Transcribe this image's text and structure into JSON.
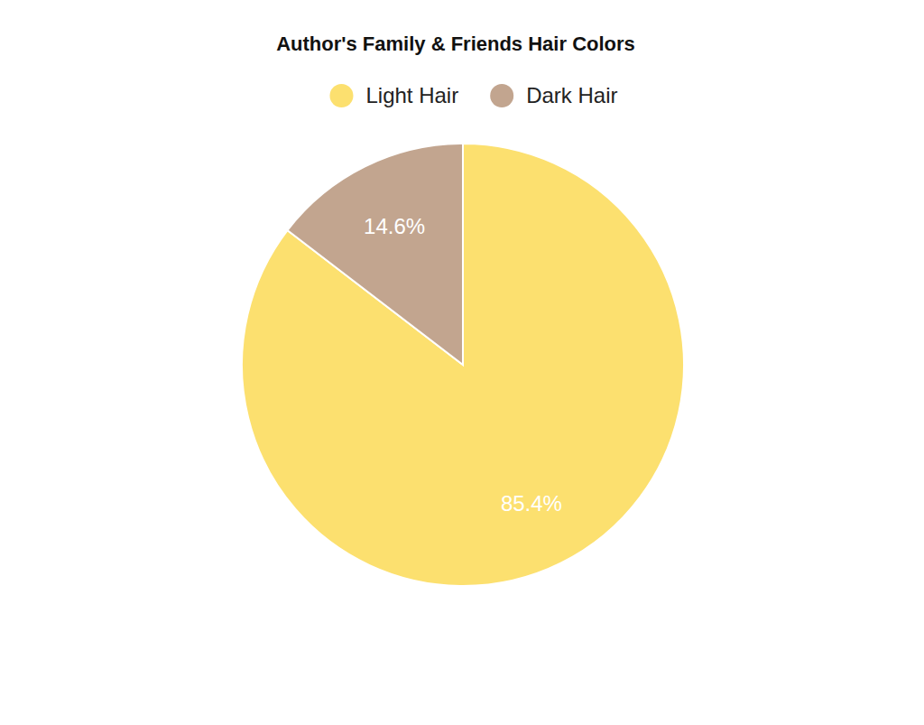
{
  "chart_data": {
    "type": "pie",
    "title": "Author's Family & Friends Hair Colors",
    "categories": [
      "Light Hair",
      "Dark Hair"
    ],
    "values": [
      85.4,
      14.6
    ],
    "value_labels": [
      "85.4%",
      "14.6%"
    ],
    "colors": [
      "#fce06f",
      "#c2a58f"
    ],
    "data_labels": true,
    "legend": "top"
  }
}
